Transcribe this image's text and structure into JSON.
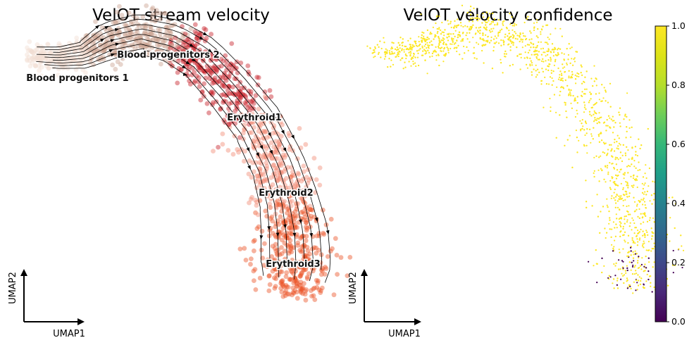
{
  "chart_data": [
    {
      "type": "scatter",
      "title": "VelOT stream velocity",
      "xlabel": "UMAP1",
      "ylabel": "UMAP2",
      "legend": "on data",
      "series": [
        {
          "name": "Blood progenitors 1",
          "color": "#f2ddd2"
        },
        {
          "name": "Blood progenitors 2",
          "color": "#c9a290"
        },
        {
          "name": "Erythroid1",
          "color": "#c7212b"
        },
        {
          "name": "Erythroid2",
          "color": "#f18b76"
        },
        {
          "name": "Erythroid3",
          "color": "#ec5428"
        }
      ],
      "overlay": "streamlines"
    },
    {
      "type": "scatter",
      "title": "VelOT velocity confidence",
      "xlabel": "UMAP1",
      "ylabel": "UMAP2",
      "colormap": "viridis",
      "colorbar": {
        "range": [
          0.0,
          1.0
        ],
        "ticks": [
          "0.0",
          "0.2",
          "0.4",
          "0.6",
          "0.8",
          "1.0"
        ],
        "ticks_numeric": [
          0.0,
          0.2,
          0.4,
          0.6,
          0.8,
          1.0
        ]
      },
      "value_summary": {
        "typical": 1.0,
        "low_values_region": "Erythroid3 tip",
        "low": 0.0
      }
    }
  ]
}
